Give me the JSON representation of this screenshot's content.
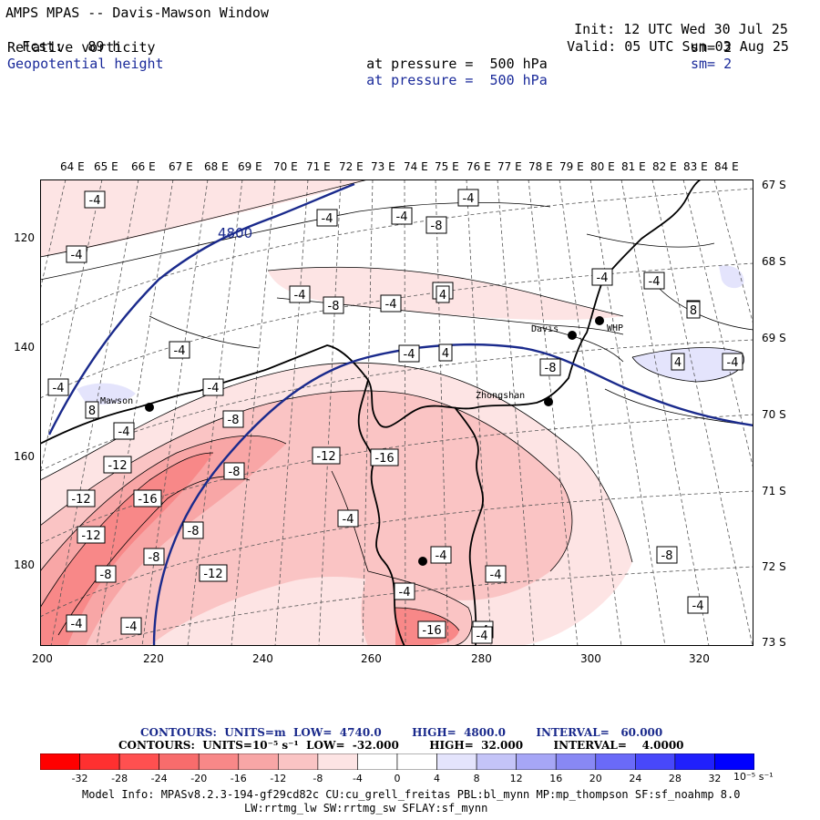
{
  "header": {
    "title": "AMPS MPAS -- Davis-Mawson Window",
    "fcst_label": "Fcst:",
    "fcst_value": "89 h",
    "init_label": "Init:",
    "init_value": "12 UTC Wed 30 Jul 25",
    "valid_label": "Valid:",
    "valid_value": "05 UTC Sun 03 Aug 25",
    "field1": {
      "name": "Relative vorticity",
      "pressure_label": "at pressure =",
      "pressure": "500 hPa",
      "sm": "sm= 2"
    },
    "field2": {
      "name": "Geopotential height",
      "pressure_label": "at pressure =",
      "pressure": "500 hPa",
      "sm": "sm= 2"
    }
  },
  "axes": {
    "top_longitudes": [
      "64 E",
      "65 E",
      "66 E",
      "67 E",
      "68 E",
      "69 E",
      "70 E",
      "71 E",
      "72 E",
      "73 E",
      "74 E",
      "75 E",
      "76 E",
      "77 E",
      "78 E",
      "79 E",
      "80 E",
      "81 E",
      "82 E",
      "83 E",
      "84 E"
    ],
    "right_latitudes": [
      "67 S",
      "68 S",
      "69 S",
      "70 S",
      "71 S",
      "72 S",
      "73 S"
    ],
    "left_grid_y": [
      "120",
      "140",
      "160",
      "180"
    ],
    "bottom_grid_x": [
      "200",
      "220",
      "240",
      "260",
      "280",
      "300",
      "320"
    ]
  },
  "map_labels": {
    "stations": [
      {
        "name": "Mawson"
      },
      {
        "name": "Zhongshan"
      },
      {
        "name": "Davis"
      },
      {
        "name": "WHP"
      }
    ],
    "height_contour_label": "4800",
    "vorticity_labels": [
      "-4",
      "-4",
      "-4",
      "-8",
      "-4",
      "-4",
      "-4",
      "-8",
      "-4",
      "-4",
      "-4",
      "-4",
      "8",
      "-4",
      "-4",
      "-4",
      "-4",
      "-8",
      "4",
      "-8",
      "-8",
      "-4",
      "-4",
      "-16",
      "-12",
      "-12",
      "-12",
      "-16",
      "-8",
      "-12",
      "-8",
      "-8",
      "-12",
      "-4",
      "-4",
      "-4",
      "-8",
      "-16",
      "-4",
      "-4",
      "-4",
      "-4",
      "8",
      "4",
      "4",
      "-4",
      "-4",
      "4"
    ]
  },
  "colorbar": {
    "contours_line1": "CONTOURS:  UNITS=m  LOW=  4740.0        HIGH=  4800.0        INTERVAL=   60.000",
    "contours_line2": "CONTOURS:  UNITS=10⁻⁵ s⁻¹  LOW=  -32.000        HIGH=  32.000        INTERVAL=    4.0000",
    "ticks": [
      "-32",
      "-28",
      "-24",
      "-20",
      "-16",
      "-12",
      "-8",
      "-4",
      "0",
      "4",
      "8",
      "12",
      "16",
      "20",
      "24",
      "28",
      "32"
    ],
    "units": "10⁻⁵ s⁻¹",
    "colors": [
      "#ff0000",
      "#ff3030",
      "#ff5050",
      "#f86c6c",
      "#f88888",
      "#f8a6a6",
      "#fac4c4",
      "#fde4e4",
      "#ffffff",
      "#ffffff",
      "#e4e4fc",
      "#c4c4f8",
      "#a6a6f6",
      "#8888f4",
      "#6a6af8",
      "#4848fa",
      "#2020fc",
      "#0000ff"
    ]
  },
  "model_info": {
    "line1": "Model Info: MPASv8.2.3-194-gf29cd82c CU:cu_grell_freitas PBL:bl_mynn MP:mp_thompson SF:sf_noahmp 8.0",
    "line2": "LW:rrtmg_lw SW:rrtmg_sw SFLAY:sf_mynn"
  },
  "colors": {
    "height_contour": "#1a2a8c",
    "header_blue": "#1a2a9a"
  }
}
